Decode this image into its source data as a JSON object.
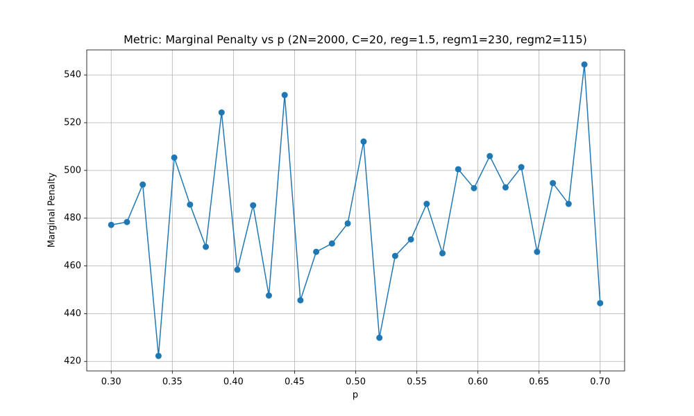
{
  "chart_data": {
    "type": "line",
    "title": "Metric: Marginal Penalty vs p (2N=2000, C=20, reg=1.5, regm1=230, regm2=115)",
    "x_label": "p",
    "y_label": "Marginal Penalty",
    "color": "#1f77b4",
    "grid": true,
    "x": [
      0.3,
      0.3129,
      0.3258,
      0.3387,
      0.3516,
      0.3645,
      0.3774,
      0.3903,
      0.4032,
      0.4161,
      0.429,
      0.4419,
      0.4548,
      0.4677,
      0.4806,
      0.4935,
      0.5065,
      0.5194,
      0.5323,
      0.5452,
      0.5581,
      0.571,
      0.5839,
      0.5968,
      0.6097,
      0.6226,
      0.6355,
      0.6484,
      0.6613,
      0.6742,
      0.6871,
      0.7
    ],
    "values": [
      477.2,
      478.4,
      494.1,
      422.3,
      505.4,
      485.7,
      468.0,
      524.3,
      458.4,
      485.4,
      447.6,
      531.6,
      445.6,
      465.9,
      469.4,
      477.8,
      512.1,
      429.9,
      464.2,
      471.1,
      486.0,
      465.3,
      500.5,
      492.6,
      506.0,
      492.9,
      501.4,
      465.9,
      494.7,
      486.0,
      544.4,
      444.4
    ],
    "xlim": [
      0.28,
      0.72
    ],
    "ylim": [
      416,
      550.5
    ],
    "xticks": [
      {
        "value": 0.3,
        "label": "0.30"
      },
      0.35,
      {
        "value": 0.4,
        "label": "0.40"
      },
      0.45,
      {
        "value": 0.5,
        "label": "0.50"
      },
      0.55,
      {
        "value": 0.6,
        "label": "0.60"
      },
      0.65,
      {
        "value": 0.7,
        "label": "0.70"
      }
    ],
    "yticks": [
      420,
      440,
      460,
      480,
      500,
      520,
      540
    ]
  }
}
